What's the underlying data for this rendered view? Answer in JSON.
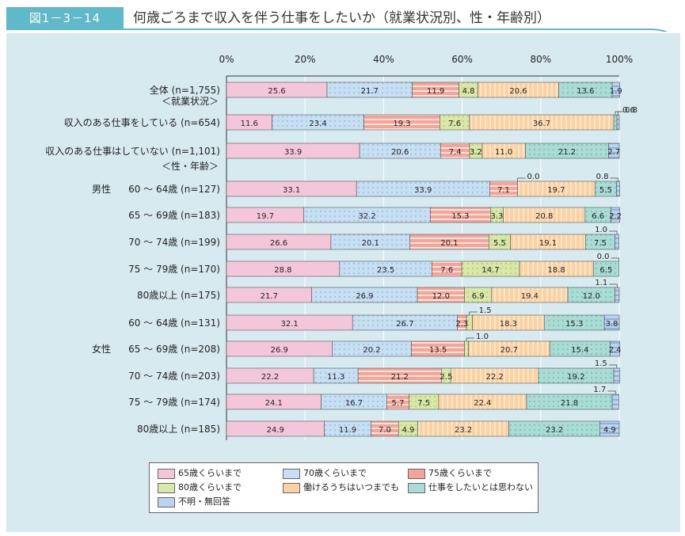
{
  "header": {
    "figure_label": "図1－3－14",
    "title": "何歳ごろまで収入を伴う仕事をしたいか（就業状況別、性・年齢別）"
  },
  "colors": {
    "header_bg": "#5fb9c9",
    "panel_bg": "#d7eaf0",
    "series": [
      "#f4c6da",
      "#c7dff2",
      "#f4a597",
      "#d9e8a6",
      "#fbd2a3",
      "#a9dcd5",
      "#bcd3ee"
    ]
  },
  "chart_data": {
    "type": "bar",
    "orientation": "horizontal",
    "stacked": true,
    "x_ticks": [
      "0%",
      "20%",
      "40%",
      "60%",
      "80%",
      "100%"
    ],
    "xlim": [
      0,
      100
    ],
    "section_headers": [
      {
        "text": "＜就業状況＞",
        "after_row": 0
      },
      {
        "text": "＜性・年齢＞",
        "after_row": 2
      }
    ],
    "group_labels": [
      {
        "text": "男性",
        "row": 3
      },
      {
        "text": "女性",
        "row": 9
      }
    ],
    "series_names": [
      "65歳くらいまで",
      "70歳くらいまで",
      "75歳くらいまで",
      "80歳くらいまで",
      "働けるうちはいつまでも",
      "仕事をしたいとは思わない",
      "不明・無回答"
    ],
    "rows": [
      {
        "label": "全体 (n=1,755)",
        "values": [
          25.6,
          21.7,
          11.9,
          4.8,
          20.6,
          13.6,
          1.9
        ]
      },
      {
        "label": "収入のある仕事をしている (n=654)",
        "values": [
          11.6,
          23.4,
          19.3,
          7.6,
          36.7,
          0.8,
          0.6
        ]
      },
      {
        "label": "収入のある仕事はしていない (n=1,101)",
        "values": [
          33.9,
          20.6,
          7.4,
          3.2,
          11.0,
          21.2,
          2.7
        ]
      },
      {
        "label": "60 ～ 64歳 (n=127)",
        "values": [
          33.1,
          33.9,
          7.1,
          0.0,
          19.7,
          5.5,
          0.8
        ]
      },
      {
        "label": "65 ～ 69歳 (n=183)",
        "values": [
          19.7,
          32.2,
          15.3,
          3.3,
          20.8,
          6.6,
          2.2
        ]
      },
      {
        "label": "70 ～ 74歳 (n=199)",
        "values": [
          26.6,
          20.1,
          20.1,
          5.5,
          19.1,
          7.5,
          1.0
        ]
      },
      {
        "label": "75 ～ 79歳 (n=170)",
        "values": [
          28.8,
          23.5,
          7.6,
          14.7,
          18.8,
          6.5,
          0.0
        ]
      },
      {
        "label": "80歳以上 (n=175)",
        "values": [
          21.7,
          26.9,
          12.0,
          6.9,
          19.4,
          12.0,
          1.1
        ]
      },
      {
        "label": "60 ～ 64歳 (n=131)",
        "values": [
          32.1,
          26.7,
          2.3,
          1.5,
          18.3,
          15.3,
          3.8
        ]
      },
      {
        "label": "65 ～ 69歳 (n=208)",
        "values": [
          26.9,
          20.2,
          13.5,
          1.0,
          20.7,
          15.4,
          2.4
        ]
      },
      {
        "label": "70 ～ 74歳 (n=203)",
        "values": [
          22.2,
          11.3,
          21.2,
          2.5,
          22.2,
          19.2,
          1.5
        ]
      },
      {
        "label": "75 ～ 79歳 (n=174)",
        "values": [
          24.1,
          16.7,
          5.7,
          7.5,
          22.4,
          21.8,
          1.7
        ]
      },
      {
        "label": "80歳以上 (n=185)",
        "values": [
          24.9,
          11.9,
          7.0,
          4.9,
          23.2,
          23.2,
          4.9
        ]
      }
    ],
    "value_labels": [
      [
        "25.6",
        "21.7",
        "11.9",
        "4.8",
        "20.6",
        "13.6",
        "1.9"
      ],
      [
        "11.6",
        "23.4",
        "19.3",
        "7.6",
        "36.7",
        "0.8",
        "0.6"
      ],
      [
        "33.9",
        "20.6",
        "7.4",
        "3.2",
        "11.0",
        "21.2",
        "2.7"
      ],
      [
        "33.1",
        "33.9",
        "7.1",
        "0.0",
        "19.7",
        "5.5",
        "0.8"
      ],
      [
        "19.7",
        "32.2",
        "15.3",
        "3.3",
        "20.8",
        "6.6",
        "2.2"
      ],
      [
        "26.6",
        "20.1",
        "20.1",
        "5.5",
        "19.1",
        "7.5",
        "1.0"
      ],
      [
        "28.8",
        "23.5",
        "7.6",
        "14.7",
        "18.8",
        "6.5",
        "0.0"
      ],
      [
        "21.7",
        "26.9",
        "12.0",
        "6.9",
        "19.4",
        "12.0",
        "1.1"
      ],
      [
        "32.1",
        "26.7",
        "2.3",
        "1.5",
        "18.3",
        "15.3",
        "3.8"
      ],
      [
        "26.9",
        "20.2",
        "13.5",
        "1.0",
        "20.7",
        "15.4",
        "2.4"
      ],
      [
        "22.2",
        "11.3",
        "21.2",
        "2.5",
        "22.2",
        "19.2",
        "1.5"
      ],
      [
        "24.1",
        "16.7",
        "5.7",
        "7.5",
        "22.4",
        "21.8",
        "1.7"
      ],
      [
        "24.9",
        "11.9",
        "7.0",
        "4.9",
        "23.2",
        "23.2",
        "4.9"
      ]
    ],
    "callouts": [
      {
        "row": 1,
        "segment": 5
      },
      {
        "row": 1,
        "segment": 6
      },
      {
        "row": 3,
        "segment": 3
      },
      {
        "row": 3,
        "segment": 6
      },
      {
        "row": 5,
        "segment": 6
      },
      {
        "row": 6,
        "segment": 6
      },
      {
        "row": 7,
        "segment": 6
      },
      {
        "row": 8,
        "segment": 3
      },
      {
        "row": 9,
        "segment": 3
      },
      {
        "row": 10,
        "segment": 6
      },
      {
        "row": 11,
        "segment": 6
      }
    ]
  },
  "legend": {
    "items": [
      "65歳くらいまで",
      "70歳くらいまで",
      "75歳くらいまで",
      "80歳くらいまで",
      "働けるうちはいつまでも",
      "仕事をしたいとは思わない",
      "不明・無回答"
    ]
  }
}
